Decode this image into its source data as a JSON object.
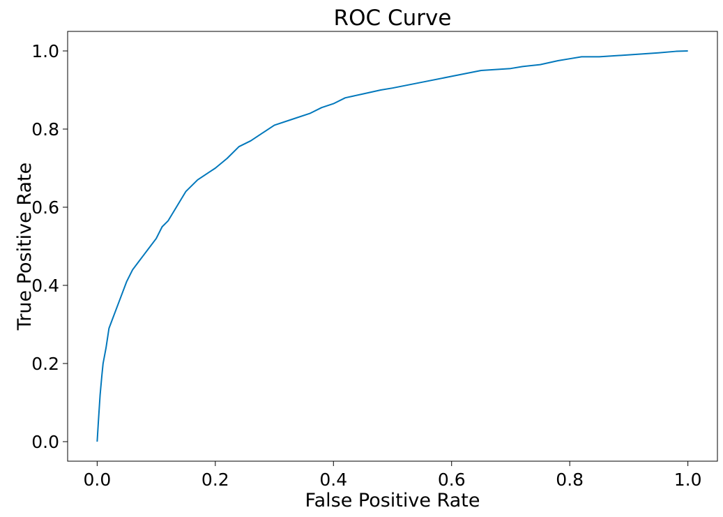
{
  "chart_data": {
    "type": "line",
    "title": "ROC Curve",
    "xlabel": "False Positive Rate",
    "ylabel": "True Positive Rate",
    "xlim": [
      -0.05,
      1.05
    ],
    "ylim": [
      -0.05,
      1.05
    ],
    "x_ticks": [
      0.0,
      0.2,
      0.4,
      0.6,
      0.8,
      1.0
    ],
    "y_ticks": [
      0.0,
      0.2,
      0.4,
      0.6,
      0.8,
      1.0
    ],
    "x_tick_labels": [
      "0.0",
      "0.2",
      "0.4",
      "0.6",
      "0.8",
      "1.0"
    ],
    "y_tick_labels": [
      "0.0",
      "0.2",
      "0.4",
      "0.6",
      "0.8",
      "1.0"
    ],
    "grid": false,
    "legend": "none",
    "series": [
      {
        "color": "#0077bb",
        "x": [
          0.0,
          0.002,
          0.005,
          0.008,
          0.01,
          0.015,
          0.02,
          0.025,
          0.03,
          0.04,
          0.05,
          0.06,
          0.07,
          0.08,
          0.09,
          0.1,
          0.11,
          0.12,
          0.13,
          0.14,
          0.15,
          0.17,
          0.19,
          0.2,
          0.22,
          0.24,
          0.26,
          0.28,
          0.3,
          0.33,
          0.36,
          0.38,
          0.4,
          0.42,
          0.45,
          0.48,
          0.5,
          0.55,
          0.6,
          0.65,
          0.7,
          0.72,
          0.75,
          0.78,
          0.8,
          0.82,
          0.85,
          0.9,
          0.95,
          0.98,
          1.0
        ],
        "y": [
          0.0,
          0.05,
          0.12,
          0.17,
          0.2,
          0.24,
          0.29,
          0.31,
          0.33,
          0.37,
          0.41,
          0.44,
          0.46,
          0.48,
          0.5,
          0.52,
          0.55,
          0.565,
          0.59,
          0.615,
          0.64,
          0.67,
          0.69,
          0.7,
          0.725,
          0.755,
          0.77,
          0.79,
          0.81,
          0.825,
          0.84,
          0.855,
          0.865,
          0.88,
          0.89,
          0.9,
          0.905,
          0.92,
          0.935,
          0.95,
          0.955,
          0.96,
          0.965,
          0.975,
          0.98,
          0.985,
          0.985,
          0.99,
          0.995,
          0.999,
          1.0
        ]
      }
    ]
  }
}
